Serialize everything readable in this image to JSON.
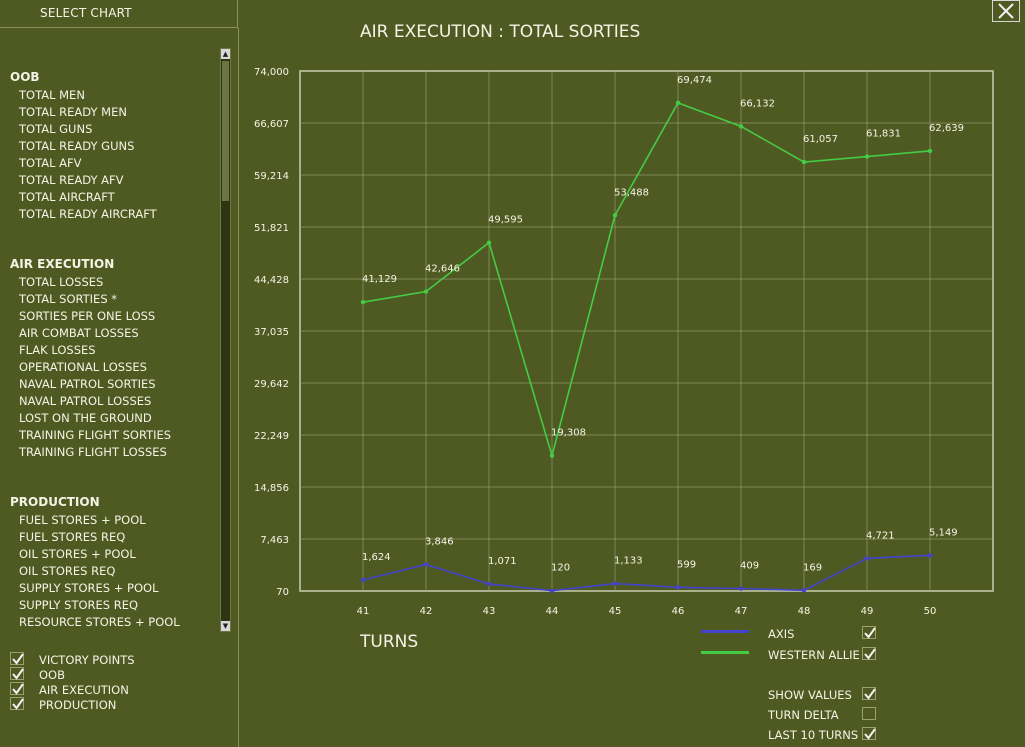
{
  "header": {
    "select_chart": "SELECT CHART",
    "close_symbol": "✕"
  },
  "chart_groups": [
    {
      "title": "OOB",
      "items": [
        "TOTAL MEN",
        "TOTAL READY MEN",
        "TOTAL GUNS",
        "TOTAL READY GUNS",
        "TOTAL AFV",
        "TOTAL READY AFV",
        "TOTAL AIRCRAFT",
        "TOTAL READY AIRCRAFT"
      ]
    },
    {
      "title": "AIR EXECUTION",
      "items": [
        "TOTAL LOSSES",
        "TOTAL SORTIES *",
        "SORTIES PER ONE LOSS",
        "AIR COMBAT LOSSES",
        "FLAK LOSSES",
        "OPERATIONAL LOSSES",
        "NAVAL PATROL SORTIES",
        "NAVAL PATROL LOSSES",
        "LOST ON THE GROUND",
        "TRAINING FLIGHT SORTIES",
        "TRAINING FLIGHT LOSSES"
      ]
    },
    {
      "title": "PRODUCTION",
      "items": [
        "FUEL STORES + POOL",
        "FUEL STORES REQ",
        "OIL STORES + POOL",
        "OIL STORES REQ",
        "SUPPLY STORES + POOL",
        "SUPPLY STORES REQ",
        "RESOURCE STORES + POOL"
      ]
    }
  ],
  "filters": [
    {
      "label": "VICTORY POINTS",
      "checked": true
    },
    {
      "label": "OOB",
      "checked": true
    },
    {
      "label": "AIR EXECUTION",
      "checked": true
    },
    {
      "label": "PRODUCTION",
      "checked": true
    }
  ],
  "legend": [
    {
      "label": "AXIS",
      "color": "#4444cc",
      "checked": true
    },
    {
      "label": "WESTERN ALLIES",
      "color": "#44cc44",
      "checked": true
    }
  ],
  "options": [
    {
      "label": "SHOW VALUES",
      "checked": true
    },
    {
      "label": "TURN DELTA",
      "checked": false
    },
    {
      "label": "LAST 10 TURNS",
      "checked": true
    }
  ],
  "chart_data": {
    "type": "line",
    "title": "AIR EXECUTION : TOTAL SORTIES",
    "xlabel": "TURNS",
    "ylabel": "",
    "x": [
      41,
      42,
      43,
      44,
      45,
      46,
      47,
      48,
      49,
      50
    ],
    "y_ticks": [
      "74,000",
      "66,607",
      "59,214",
      "51,821",
      "44,428",
      "37,035",
      "29,642",
      "22,249",
      "14,856",
      "7,463",
      "70"
    ],
    "ylim": [
      70,
      74000
    ],
    "grid": true,
    "series": [
      {
        "name": "AXIS",
        "color": "#4444cc",
        "values": [
          1624,
          3846,
          1071,
          120,
          1133,
          599,
          409,
          169,
          4721,
          5149
        ],
        "labels": [
          "1,624",
          "3,846",
          "1,071",
          "120",
          "1,133",
          "599",
          "409",
          "169",
          "4,721",
          "5,149"
        ]
      },
      {
        "name": "WESTERN ALLIES",
        "color": "#44cc44",
        "values": [
          41129,
          42646,
          49595,
          19308,
          53488,
          69474,
          66132,
          61057,
          61831,
          62639
        ],
        "labels": [
          "41,129",
          "42,646",
          "49,595",
          "19,308",
          "53,488",
          "69,474",
          "66,132",
          "61,057",
          "61,831",
          "62,639"
        ]
      }
    ]
  }
}
